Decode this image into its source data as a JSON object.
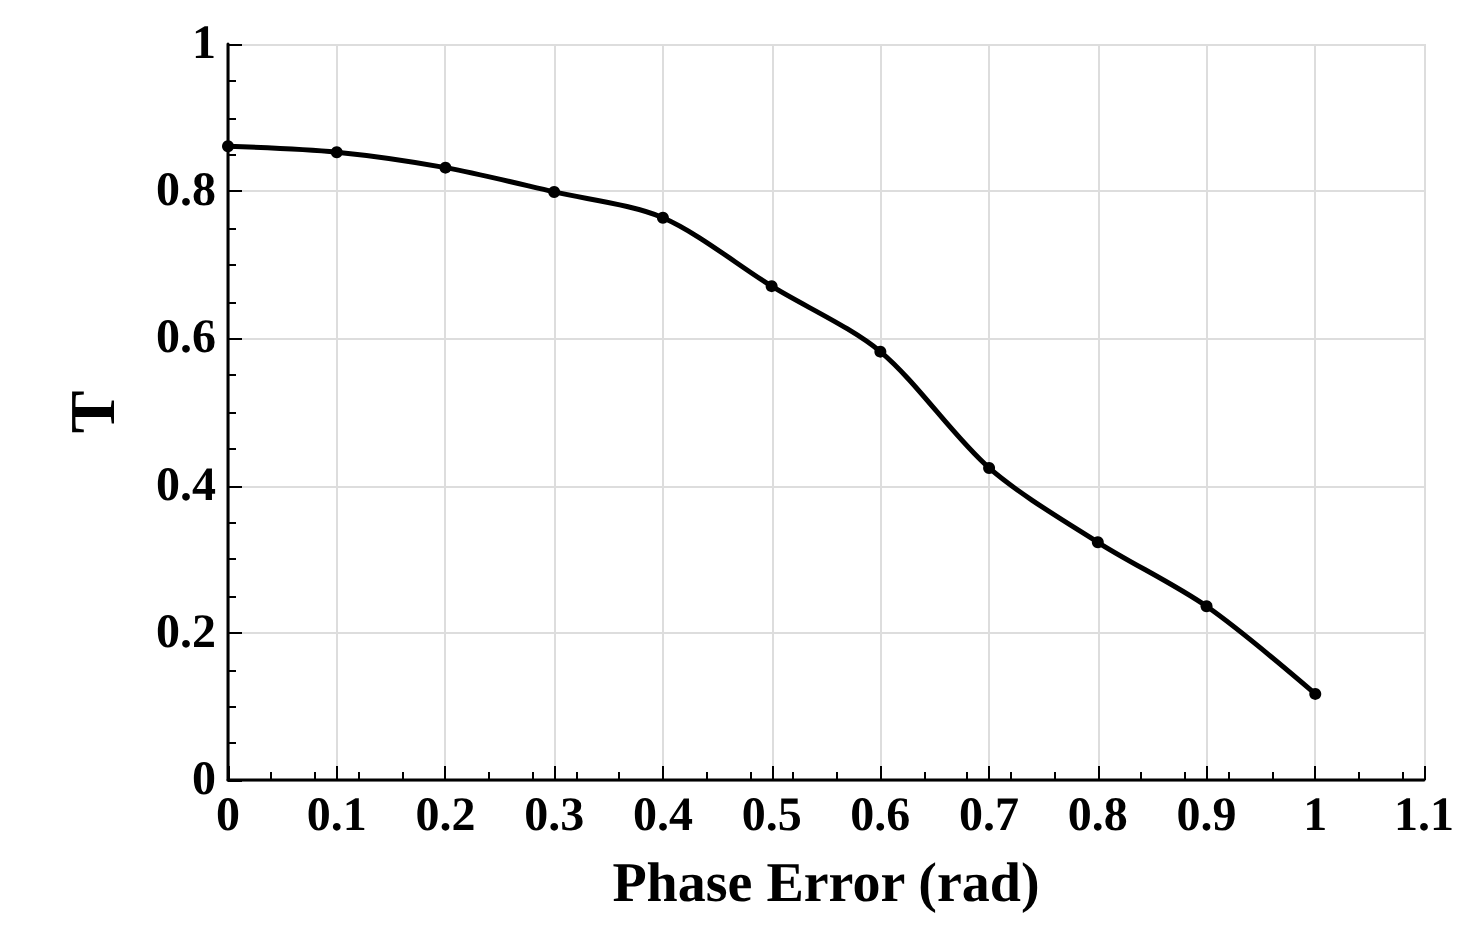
{
  "chart_data": {
    "type": "line",
    "xlabel": "Phase Error (rad)",
    "ylabel": "T",
    "x": [
      0,
      0.1,
      0.2,
      0.3,
      0.4,
      0.5,
      0.6,
      0.7,
      0.8,
      0.9,
      1
    ],
    "series": [
      {
        "color": "#000000",
        "values": [
          0.861,
          0.853,
          0.832,
          0.799,
          0.764,
          0.671,
          0.582,
          0.424,
          0.323,
          0.236,
          0.117
        ]
      }
    ],
    "xlim": [
      0,
      1.1
    ],
    "xticks": [
      0,
      0.1,
      0.2,
      0.3,
      0.4,
      0.5,
      0.6,
      0.7,
      0.8,
      0.9,
      1,
      1.1
    ],
    "ylim": [
      0,
      1
    ],
    "yticks": [
      0,
      0.2,
      0.4,
      0.6,
      0.8,
      1
    ],
    "grid": true,
    "marker": "circle",
    "line_style": "solid"
  }
}
